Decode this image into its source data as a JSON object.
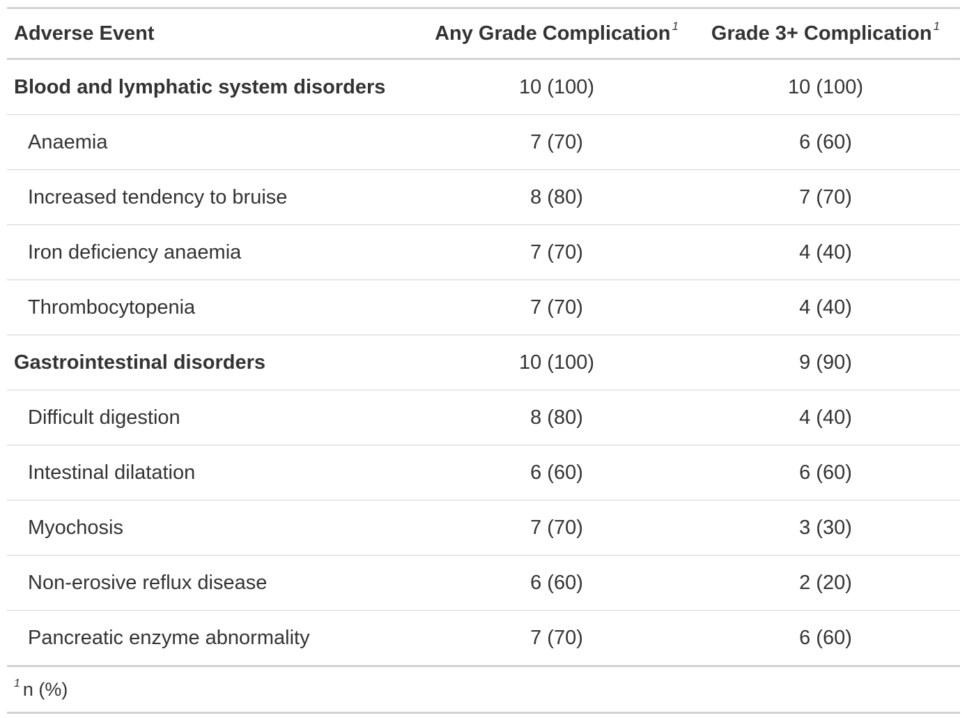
{
  "table": {
    "headers": {
      "adverse_event": "Adverse Event",
      "any_grade": "Any Grade Complication",
      "any_grade_marker": "1",
      "grade3": "Grade 3+ Complication",
      "grade3_marker": "1"
    },
    "rows": [
      {
        "label": "Blood and lymphatic system disorders",
        "group": true,
        "any": "10 (100)",
        "grade3": "10 (100)"
      },
      {
        "label": "Anaemia",
        "group": false,
        "any": "7 (70)",
        "grade3": "6 (60)"
      },
      {
        "label": "Increased tendency to bruise",
        "group": false,
        "any": "8 (80)",
        "grade3": "7 (70)"
      },
      {
        "label": "Iron deficiency anaemia",
        "group": false,
        "any": "7 (70)",
        "grade3": "4 (40)"
      },
      {
        "label": "Thrombocytopenia",
        "group": false,
        "any": "7 (70)",
        "grade3": "4 (40)"
      },
      {
        "label": "Gastrointestinal disorders",
        "group": true,
        "any": "10 (100)",
        "grade3": "9 (90)"
      },
      {
        "label": "Difficult digestion",
        "group": false,
        "any": "8 (80)",
        "grade3": "4 (40)"
      },
      {
        "label": "Intestinal dilatation",
        "group": false,
        "any": "6 (60)",
        "grade3": "6 (60)"
      },
      {
        "label": "Myochosis",
        "group": false,
        "any": "7 (70)",
        "grade3": "3 (30)"
      },
      {
        "label": "Non-erosive reflux disease",
        "group": false,
        "any": "6 (60)",
        "grade3": "2 (20)"
      },
      {
        "label": "Pancreatic enzyme abnormality",
        "group": false,
        "any": "7 (70)",
        "grade3": "6 (60)"
      }
    ],
    "footnote": {
      "marker": "1",
      "text": "n (%)"
    }
  }
}
